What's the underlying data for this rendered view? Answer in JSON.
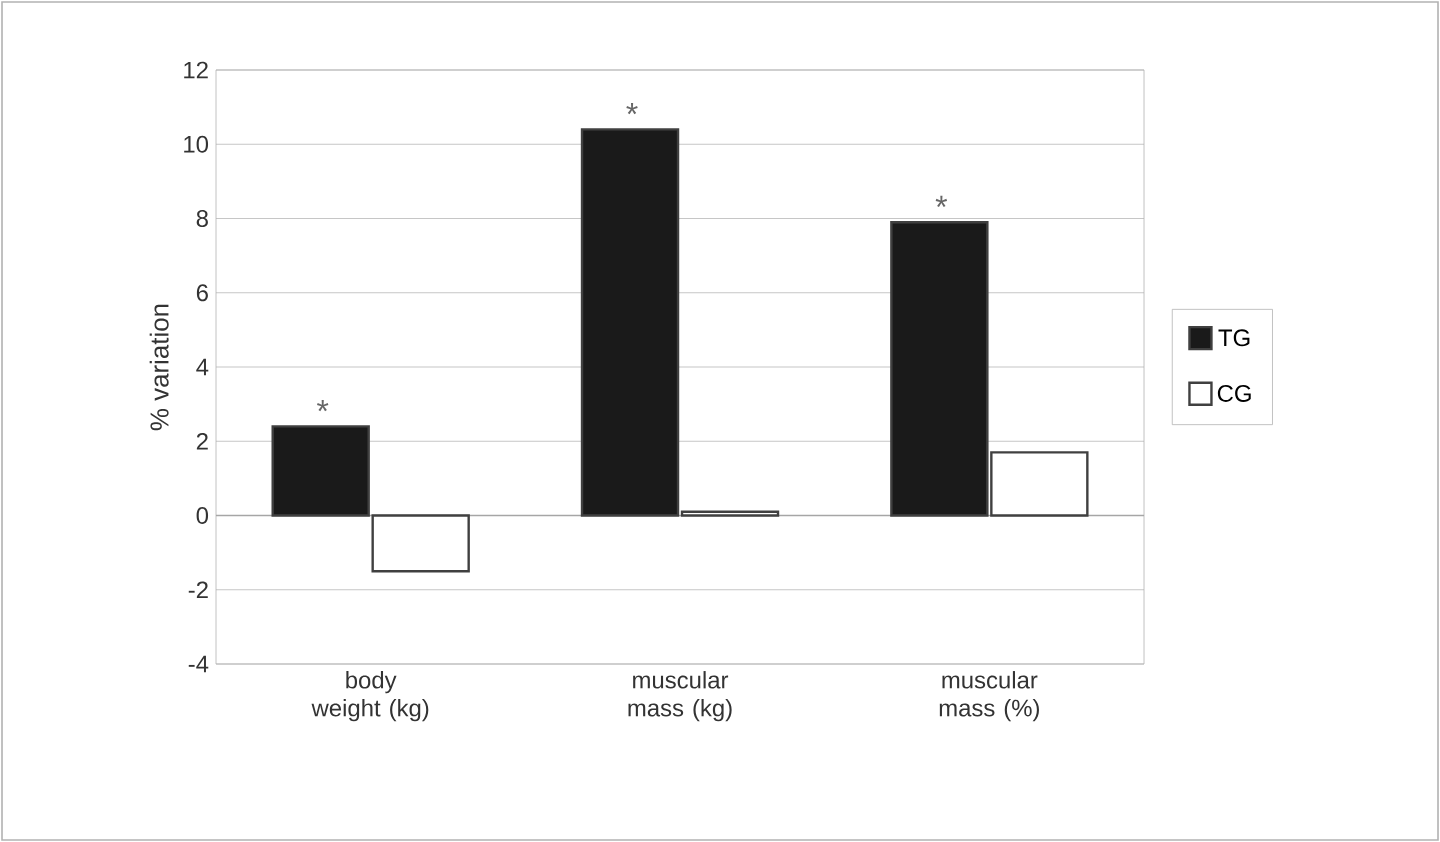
{
  "chart_data": {
    "type": "bar",
    "ylabel": "% variation",
    "categories": [
      "body weight (kg)",
      "muscular mass (kg)",
      "muscular mass (%)"
    ],
    "series": [
      {
        "name": "TG",
        "color": "#1a1a1a",
        "values": [
          2.4,
          10.4,
          7.9
        ]
      },
      {
        "name": "CG",
        "color": "#ffffff",
        "values": [
          -1.5,
          0.1,
          1.7
        ]
      }
    ],
    "ylim": [
      -4,
      12
    ],
    "yticks": [
      -4,
      -2,
      0,
      2,
      4,
      6,
      8,
      10,
      12
    ],
    "grid": "y",
    "legend": "right",
    "annotations": [
      {
        "text": "*",
        "x": "body weight (kg)",
        "y": 2.4
      },
      {
        "text": "*",
        "x": "muscular mass (kg)",
        "y": 10.4
      },
      {
        "text": "*",
        "x": "muscular mass (%)",
        "y": 7.9
      }
    ]
  }
}
